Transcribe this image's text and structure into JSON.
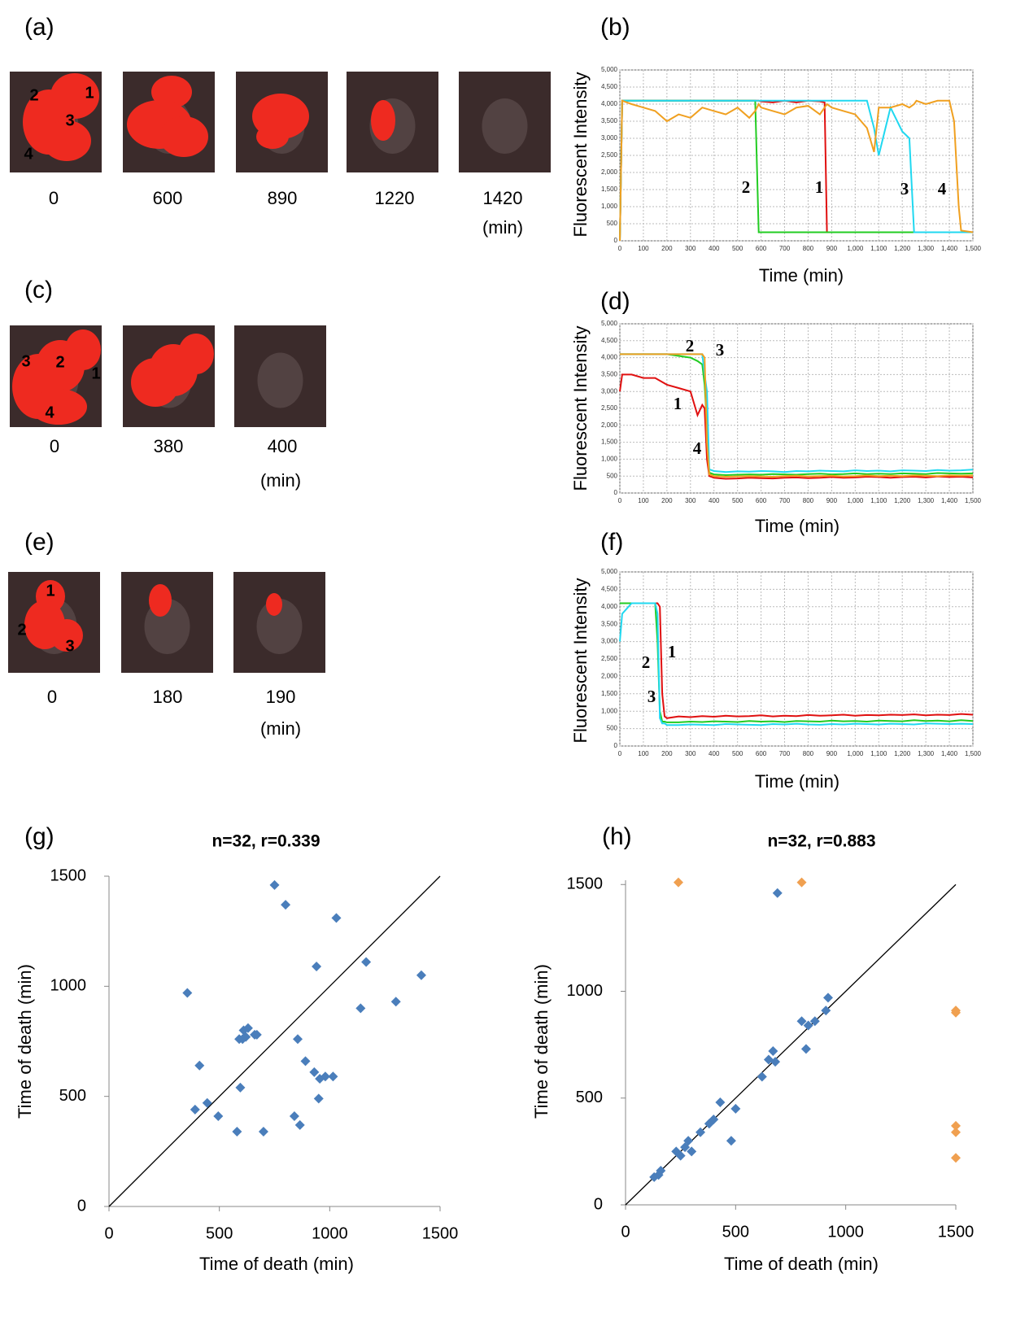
{
  "panel_labels": [
    "(a)",
    "(b)",
    "(c)",
    "(d)",
    "(e)",
    "(f)",
    "(g)",
    "(h)"
  ],
  "image_rows": [
    {
      "times": [
        "0",
        "600",
        "890",
        "1220",
        "1420"
      ],
      "unit": "(min)",
      "cell_labels": [
        "1",
        "2",
        "3",
        "4"
      ]
    },
    {
      "times": [
        "0",
        "380",
        "400"
      ],
      "unit": "(min)",
      "cell_labels": [
        "1",
        "2",
        "3",
        "4"
      ]
    },
    {
      "times": [
        "0",
        "180",
        "190"
      ],
      "unit": "(min)",
      "cell_labels": [
        "1",
        "2",
        "3"
      ]
    }
  ],
  "chart_data": [
    {
      "type": "line",
      "xlabel": "Time (min)",
      "ylabel": "Fluorescent Intensity",
      "grid": true,
      "xlim": [
        0,
        1500
      ],
      "ylim": [
        0,
        5000
      ],
      "xticks": [
        0,
        100,
        200,
        300,
        400,
        500,
        600,
        700,
        800,
        900,
        {
          "value": 1000,
          "label": "1,000"
        },
        {
          "value": 1100,
          "label": "1,100"
        },
        {
          "value": 1200,
          "label": "1,200"
        },
        {
          "value": 1300,
          "label": "1,300"
        },
        {
          "value": 1400,
          "label": "1,400"
        },
        {
          "value": 1500,
          "label": "1,500"
        }
      ],
      "yticks": [
        0,
        500,
        {
          "value": 1000,
          "label": "1,000"
        },
        {
          "value": 1500,
          "label": "1,500"
        },
        {
          "value": 2000,
          "label": "2,000"
        },
        {
          "value": 2500,
          "label": "2,500"
        },
        {
          "value": 3000,
          "label": "3,000"
        },
        {
          "value": 3500,
          "label": "3,500"
        },
        {
          "value": 4000,
          "label": "4,000"
        },
        {
          "value": 4500,
          "label": "4,500"
        },
        {
          "value": 5000,
          "label": "5,000"
        }
      ],
      "x": [
        0,
        10,
        50,
        100,
        150,
        200,
        250,
        300,
        350,
        400,
        450,
        500,
        550,
        575,
        590,
        600,
        650,
        700,
        750,
        800,
        850,
        870,
        880,
        900,
        950,
        1000,
        1050,
        1080,
        1100,
        1150,
        1200,
        1230,
        1250,
        1260,
        1300,
        1350,
        1400,
        1420,
        1440,
        1450,
        1500
      ],
      "series": [
        {
          "name": "1",
          "color": "#e01010",
          "values": [
            0,
            4100,
            4100,
            4100,
            4100,
            4100,
            4100,
            4100,
            4100,
            4100,
            4100,
            4100,
            4100,
            4100,
            4100,
            4080,
            4050,
            4100,
            4050,
            4100,
            4080,
            4050,
            250,
            250,
            250,
            250,
            250,
            250,
            250,
            250,
            250,
            250,
            250,
            250,
            250,
            250,
            250,
            250,
            250,
            250,
            250
          ]
        },
        {
          "name": "2",
          "color": "#22cc22",
          "values": [
            0,
            4100,
            4100,
            4100,
            4100,
            4100,
            4100,
            4100,
            4100,
            4100,
            4100,
            4100,
            4100,
            4100,
            250,
            250,
            250,
            250,
            250,
            250,
            250,
            250,
            250,
            250,
            250,
            250,
            250,
            250,
            250,
            250,
            250,
            250,
            250,
            250,
            250,
            250,
            250,
            250,
            250,
            250,
            250
          ]
        },
        {
          "name": "3",
          "color": "#20d8f0",
          "values": [
            0,
            4100,
            4100,
            4100,
            4100,
            4100,
            4100,
            4100,
            4100,
            4100,
            4100,
            4100,
            4100,
            4100,
            4100,
            4100,
            4100,
            4100,
            4100,
            4100,
            4100,
            4100,
            4100,
            4100,
            4100,
            4100,
            4100,
            3300,
            2500,
            3900,
            3200,
            3000,
            250,
            250,
            250,
            250,
            250,
            250,
            250,
            250,
            250
          ]
        },
        {
          "name": "4",
          "color": "#f0a020",
          "values": [
            0,
            4100,
            4000,
            3900,
            3800,
            3500,
            3700,
            3600,
            3900,
            3800,
            3700,
            3900,
            3600,
            3800,
            4000,
            3900,
            3800,
            3700,
            3900,
            3950,
            3700,
            3900,
            4000,
            3900,
            3800,
            3700,
            3300,
            2600,
            3900,
            3900,
            4000,
            3900,
            4000,
            4100,
            4000,
            4100,
            4100,
            3500,
            1000,
            300,
            250
          ]
        }
      ]
    },
    {
      "type": "line",
      "xlabel": "Time (min)",
      "ylabel": "Fluorescent Intensity",
      "grid": true,
      "xlim": [
        0,
        1500
      ],
      "ylim": [
        0,
        5000
      ],
      "xticks": [
        0,
        100,
        200,
        300,
        400,
        500,
        600,
        700,
        800,
        900,
        {
          "value": 1000,
          "label": "1,000"
        },
        {
          "value": 1100,
          "label": "1,100"
        },
        {
          "value": 1200,
          "label": "1,200"
        },
        {
          "value": 1300,
          "label": "1,300"
        },
        {
          "value": 1400,
          "label": "1,400"
        },
        {
          "value": 1500,
          "label": "1,500"
        }
      ],
      "yticks": [
        0,
        500,
        {
          "value": 1000,
          "label": "1,000"
        },
        {
          "value": 1500,
          "label": "1,500"
        },
        {
          "value": 2000,
          "label": "2,000"
        },
        {
          "value": 2500,
          "label": "2,500"
        },
        {
          "value": 3000,
          "label": "3,000"
        },
        {
          "value": 3500,
          "label": "3,500"
        },
        {
          "value": 4000,
          "label": "4,000"
        },
        {
          "value": 4500,
          "label": "4,500"
        },
        {
          "value": 5000,
          "label": "5,000"
        }
      ],
      "x": [
        0,
        10,
        50,
        100,
        150,
        200,
        250,
        300,
        330,
        350,
        360,
        370,
        380,
        400,
        450,
        500,
        550,
        600,
        650,
        700,
        750,
        800,
        850,
        900,
        950,
        1000,
        1050,
        1100,
        1150,
        1200,
        1250,
        1300,
        1350,
        1400,
        1450,
        1500
      ],
      "series": [
        {
          "name": "1",
          "color": "#e01010",
          "values": [
            3000,
            3500,
            3500,
            3400,
            3400,
            3200,
            3100,
            3000,
            2300,
            2600,
            2500,
            1000,
            500,
            450,
            420,
            430,
            450,
            440,
            430,
            450,
            460,
            440,
            450,
            470,
            450,
            460,
            480,
            470,
            450,
            470,
            480,
            460,
            490,
            470,
            480,
            460
          ]
        },
        {
          "name": "2",
          "color": "#22cc22",
          "values": [
            4100,
            4100,
            4100,
            4100,
            4100,
            4100,
            4050,
            4000,
            3900,
            3800,
            3200,
            2000,
            600,
            550,
            530,
            540,
            550,
            540,
            560,
            550,
            540,
            560,
            570,
            550,
            560,
            580,
            560,
            570,
            560,
            580,
            570,
            560,
            590,
            580,
            570,
            580
          ]
        },
        {
          "name": "3",
          "color": "#20d8f0",
          "values": [
            4100,
            4100,
            4100,
            4100,
            4100,
            4100,
            4100,
            4100,
            4100,
            4100,
            3500,
            3000,
            700,
            650,
            620,
            640,
            630,
            650,
            640,
            620,
            650,
            640,
            660,
            650,
            640,
            670,
            650,
            660,
            640,
            670,
            660,
            650,
            680,
            660,
            670,
            690
          ]
        },
        {
          "name": "4",
          "color": "#f0a020",
          "values": [
            4100,
            4100,
            4100,
            4100,
            4100,
            4100,
            4100,
            4100,
            4100,
            4100,
            4000,
            1500,
            550,
            500,
            480,
            490,
            500,
            490,
            480,
            500,
            510,
            490,
            500,
            510,
            490,
            500,
            520,
            500,
            510,
            500,
            520,
            510,
            500,
            520,
            510,
            520
          ]
        }
      ]
    },
    {
      "type": "line",
      "xlabel": "Time (min)",
      "ylabel": "Fluorescent Intensity",
      "grid": true,
      "xlim": [
        0,
        1500
      ],
      "ylim": [
        0,
        5000
      ],
      "xticks": [
        0,
        100,
        200,
        300,
        400,
        500,
        600,
        700,
        800,
        900,
        {
          "value": 1000,
          "label": "1,000"
        },
        {
          "value": 1100,
          "label": "1,100"
        },
        {
          "value": 1200,
          "label": "1,200"
        },
        {
          "value": 1300,
          "label": "1,300"
        },
        {
          "value": 1400,
          "label": "1,400"
        },
        {
          "value": 1500,
          "label": "1,500"
        }
      ],
      "yticks": [
        0,
        500,
        {
          "value": 1000,
          "label": "1,000"
        },
        {
          "value": 1500,
          "label": "1,500"
        },
        {
          "value": 2000,
          "label": "2,000"
        },
        {
          "value": 2500,
          "label": "2,500"
        },
        {
          "value": 3000,
          "label": "3,000"
        },
        {
          "value": 3500,
          "label": "3,500"
        },
        {
          "value": 4000,
          "label": "4,000"
        },
        {
          "value": 4500,
          "label": "4,500"
        },
        {
          "value": 5000,
          "label": "5,000"
        }
      ],
      "x": [
        0,
        10,
        50,
        100,
        150,
        160,
        170,
        180,
        190,
        200,
        250,
        300,
        350,
        400,
        450,
        500,
        550,
        600,
        650,
        700,
        750,
        800,
        850,
        900,
        950,
        1000,
        1050,
        1100,
        1150,
        1200,
        1250,
        1300,
        1350,
        1400,
        1450,
        1500
      ],
      "series": [
        {
          "name": "1",
          "color": "#e01010",
          "values": [
            4100,
            4100,
            4100,
            4100,
            4100,
            4100,
            4000,
            1500,
            850,
            800,
            850,
            830,
            860,
            840,
            870,
            850,
            860,
            880,
            850,
            870,
            860,
            890,
            870,
            880,
            900,
            870,
            890,
            880,
            900,
            890,
            910,
            880,
            900,
            890,
            920,
            900
          ]
        },
        {
          "name": "2",
          "color": "#22cc22",
          "values": [
            4100,
            4100,
            4100,
            4100,
            4100,
            3000,
            1000,
            700,
            700,
            680,
            680,
            700,
            690,
            710,
            700,
            690,
            720,
            700,
            710,
            690,
            720,
            710,
            700,
            730,
            710,
            720,
            700,
            730,
            720,
            710,
            740,
            720,
            730,
            710,
            740,
            720
          ]
        },
        {
          "name": "3",
          "color": "#20d8f0",
          "values": [
            3000,
            3800,
            4100,
            4100,
            4100,
            3800,
            800,
            650,
            650,
            600,
            600,
            620,
            610,
            600,
            630,
            620,
            610,
            600,
            630,
            620,
            640,
            620,
            610,
            630,
            620,
            640,
            630,
            620,
            640,
            630,
            620,
            650,
            640,
            630,
            640,
            630
          ]
        }
      ]
    },
    {
      "type": "scatter",
      "title": "n=32,  r=0.339",
      "xlabel": "Time of death  (min)",
      "ylabel": "Time of death (min)",
      "diagonal": true,
      "xlim": [
        0,
        1500
      ],
      "ylim": [
        0,
        1500
      ],
      "xticks": [
        0,
        500,
        1000,
        1500
      ],
      "yticks": [
        0,
        500,
        1000,
        1500
      ],
      "series": [
        {
          "color": "#4a7ebb",
          "x": [
            355,
            390,
            410,
            445,
            495,
            580,
            590,
            595,
            605,
            610,
            620,
            630,
            660,
            670,
            700,
            750,
            800,
            840,
            855,
            865,
            890,
            930,
            940,
            950,
            955,
            980,
            1015,
            1030,
            1140,
            1165,
            1300,
            1415
          ],
          "values": [
            970,
            440,
            640,
            470,
            410,
            340,
            760,
            540,
            760,
            800,
            770,
            810,
            780,
            780,
            340,
            1460,
            1370,
            410,
            760,
            370,
            660,
            610,
            1090,
            490,
            580,
            590,
            590,
            1310,
            900,
            1110,
            930,
            1050
          ]
        }
      ]
    },
    {
      "type": "scatter",
      "title": "n=32, r=0.883",
      "xlabel": "Time of death  (min)",
      "ylabel": "Time of death (min)",
      "diagonal": true,
      "xlim": [
        0,
        1500
      ],
      "ylim": [
        0,
        1520
      ],
      "xticks": [
        0,
        500,
        1000,
        1500
      ],
      "yticks": [
        0,
        500,
        1000,
        1500
      ],
      "series": [
        {
          "color": "#4a7ebb",
          "x": [
            130,
            150,
            160,
            230,
            250,
            270,
            285,
            300,
            340,
            380,
            400,
            430,
            480,
            500,
            620,
            650,
            670,
            680,
            690,
            800,
            820,
            830,
            860,
            910,
            920
          ],
          "values": [
            130,
            140,
            160,
            250,
            230,
            270,
            300,
            250,
            340,
            380,
            400,
            480,
            300,
            450,
            600,
            680,
            720,
            670,
            1460,
            860,
            730,
            840,
            860,
            910,
            970
          ]
        },
        {
          "color": "#f0a050",
          "x": [
            240,
            800,
            1500,
            1500,
            1500,
            1500,
            1500
          ],
          "values": [
            1510,
            1510,
            910,
            900,
            370,
            340,
            220
          ]
        }
      ]
    }
  ]
}
